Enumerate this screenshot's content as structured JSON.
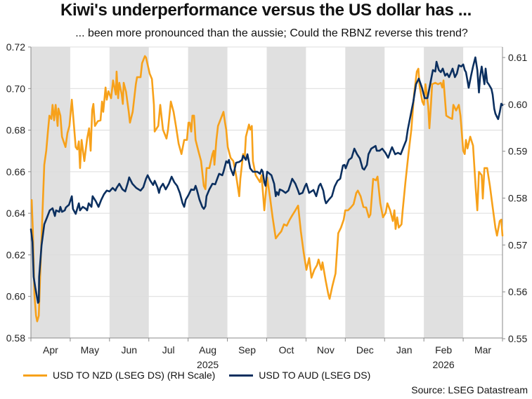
{
  "chart_data": {
    "type": "line",
    "title": "Kiwi's underperformance versus the US dollar has ...",
    "subtitle": "... been more pronounced than the aussie; Could the RBNZ reverse this trend?",
    "xlabel": "",
    "x_unit": "months since start of Apr 2025",
    "x_range": [
      0,
      12
    ],
    "x_ticks": [
      "Apr",
      "May",
      "Jun",
      "Jul",
      "Aug",
      "Sep",
      "Oct",
      "Nov",
      "Dec",
      "Jan",
      "Feb",
      "Mar"
    ],
    "x_year_labels": [
      {
        "label": "2025",
        "under": "Aug"
      },
      {
        "label": "2026",
        "under": "Feb"
      }
    ],
    "alternating_month_shading": true,
    "y_left": {
      "range": [
        0.58,
        0.72
      ],
      "ticks": [
        "0.58",
        "0.60",
        "0.62",
        "0.64",
        "0.66",
        "0.68",
        "0.70",
        "0.72"
      ]
    },
    "y_right": {
      "range": [
        0.55,
        0.61
      ],
      "ticks": [
        "0.55",
        "0.56",
        "0.57",
        "0.58",
        "0.59",
        "0.60",
        "0.61"
      ]
    },
    "grid": true,
    "legend_position": "bottom",
    "source": "Source: LSEG Datastream",
    "series": [
      {
        "name": "USD TO NZD (LSEG DS) (RH Scale)",
        "axis": "right",
        "color": "#f7a11a",
        "x": [
          0.02,
          0.05,
          0.09,
          0.13,
          0.16,
          0.2,
          0.23,
          0.29,
          0.34,
          0.39,
          0.43,
          0.47,
          0.52,
          0.55,
          0.59,
          0.63,
          0.68,
          0.7,
          0.75,
          0.79,
          0.88,
          0.93,
          0.98,
          1.04,
          1.09,
          1.14,
          1.18,
          1.22,
          1.25,
          1.29,
          1.36,
          1.43,
          1.48,
          1.52,
          1.56,
          1.59,
          1.63,
          1.7,
          1.77,
          1.81,
          1.84,
          1.9,
          1.93,
          1.97,
          2.04,
          2.09,
          2.16,
          2.18,
          2.22,
          2.25,
          2.31,
          2.34,
          2.36,
          2.42,
          2.49,
          2.52,
          2.59,
          2.67,
          2.7,
          2.79,
          2.83,
          2.9,
          2.93,
          3.02,
          3.08,
          3.13,
          3.15,
          3.24,
          3.29,
          3.36,
          3.45,
          3.49,
          3.56,
          3.63,
          3.69,
          3.76,
          3.83,
          3.9,
          3.97,
          4.01,
          4.04,
          4.08,
          4.11,
          4.15,
          4.19,
          4.26,
          4.33,
          4.4,
          4.44,
          4.47,
          4.54,
          4.62,
          4.65,
          4.67,
          4.72,
          4.76,
          4.83,
          4.9,
          4.94,
          4.97,
          5.01,
          5.08,
          5.15,
          5.22,
          5.3,
          5.33,
          5.4,
          5.44,
          5.47,
          5.55,
          5.58,
          5.62,
          5.65,
          5.72,
          5.83,
          5.87,
          5.94,
          6.01,
          6.08,
          6.15,
          6.23,
          6.3,
          6.37,
          6.44,
          6.51,
          6.58,
          6.65,
          6.73,
          6.8,
          6.87,
          6.94,
          7.01,
          7.08,
          7.14,
          7.21,
          7.28,
          7.32,
          7.39,
          7.42,
          7.5,
          7.57,
          7.6,
          7.67,
          7.75,
          7.82,
          7.89,
          7.96,
          8.0,
          8.07,
          8.14,
          8.21,
          8.28,
          8.32,
          8.39,
          8.46,
          8.53,
          8.6,
          8.64,
          8.71,
          8.78,
          8.82,
          8.89,
          8.96,
          9.03,
          9.07,
          9.14,
          9.21,
          9.25,
          9.28,
          9.32,
          9.36,
          9.43,
          9.46,
          9.53,
          9.61,
          9.68,
          9.75,
          9.82,
          9.86,
          9.89,
          9.96,
          10.0,
          10.04,
          10.11,
          10.14,
          10.18,
          10.21,
          10.29,
          10.36,
          10.43,
          10.47,
          10.5,
          10.57,
          10.64,
          10.72,
          10.75,
          10.82,
          10.89,
          10.93,
          11.0,
          11.04,
          11.07,
          11.11,
          11.18,
          11.25,
          11.32,
          11.36,
          11.4,
          11.47,
          11.5,
          11.54,
          11.61,
          11.68,
          11.75,
          11.82,
          11.86,
          11.93,
          11.97,
          12.0
        ],
        "values": [
          0.5796,
          0.5729,
          0.5594,
          0.5549,
          0.5537,
          0.5549,
          0.5624,
          0.5759,
          0.5871,
          0.5901,
          0.5939,
          0.5976,
          0.5969,
          0.5999,
          0.5966,
          0.5999,
          0.5954,
          0.5991,
          0.5976,
          0.5931,
          0.5909,
          0.5939,
          0.5954,
          0.601,
          0.5961,
          0.5909,
          0.5904,
          0.5921,
          0.5864,
          0.5924,
          0.5879,
          0.5927,
          0.5949,
          0.5901,
          0.5988,
          0.6001,
          0.5954,
          0.5964,
          0.5966,
          0.6006,
          0.5984,
          0.6036,
          0.601,
          0.6028,
          0.6013,
          0.6051,
          0.6021,
          0.607,
          0.6013,
          0.6046,
          0.6021,
          0.6001,
          0.6046,
          0.6027,
          0.5984,
          0.5961,
          0.5984,
          0.6043,
          0.6058,
          0.6058,
          0.6088,
          0.6103,
          0.61,
          0.6066,
          0.6054,
          0.5999,
          0.5942,
          0.5954,
          0.5999,
          0.5946,
          0.5927,
          0.5946,
          0.6006,
          0.5984,
          0.5954,
          0.5916,
          0.5894,
          0.5924,
          0.5924,
          0.5961,
          0.5961,
          0.5942,
          0.5976,
          0.5976,
          0.5924,
          0.5901,
          0.5879,
          0.5826,
          0.5819,
          0.5864,
          0.5864,
          0.5894,
          0.5901,
          0.5871,
          0.5924,
          0.5954,
          0.5969,
          0.5984,
          0.5961,
          0.5946,
          0.5909,
          0.5886,
          0.5879,
          0.5849,
          0.5804,
          0.5841,
          0.5894,
          0.5886,
          0.5931,
          0.5957,
          0.5946,
          0.5954,
          0.5879,
          0.5849,
          0.5834,
          0.5849,
          0.5774,
          0.5844,
          0.5804,
          0.5759,
          0.5714,
          0.5722,
          0.5729,
          0.5744,
          0.5741,
          0.5753,
          0.5763,
          0.5774,
          0.5784,
          0.5729,
          0.5684,
          0.5647,
          0.5672,
          0.563,
          0.5647,
          0.5657,
          0.5669,
          0.5647,
          0.5663,
          0.5624,
          0.5594,
          0.5585,
          0.5612,
          0.5639,
          0.5725,
          0.5737,
          0.5754,
          0.5774,
          0.5774,
          0.578,
          0.5787,
          0.5811,
          0.5816,
          0.5804,
          0.5781,
          0.578,
          0.5759,
          0.5765,
          0.5841,
          0.5838,
          0.5846,
          0.5789,
          0.5759,
          0.5769,
          0.5789,
          0.5774,
          0.5751,
          0.5774,
          0.5734,
          0.5759,
          0.5737,
          0.5744,
          0.5774,
          0.5834,
          0.5897,
          0.5946,
          0.6021,
          0.607,
          0.6076,
          0.604,
          0.6006,
          0.5999,
          0.6043,
          0.5996,
          0.5949,
          0.5999,
          0.6043,
          0.6046,
          0.6043,
          0.6046,
          0.6036,
          0.6051,
          0.5976,
          0.5972,
          0.5969,
          0.5999,
          0.5987,
          0.5999,
          0.5976,
          0.5901,
          0.5894,
          0.5924,
          0.5906,
          0.5931,
          0.5912,
          0.5819,
          0.5774,
          0.5856,
          0.5849,
          0.5799,
          0.5864,
          0.5864,
          0.5826,
          0.5781,
          0.5737,
          0.572,
          0.5751,
          0.5754,
          0.572
        ]
      },
      {
        "name": "USD TO AUD (LSEG DS)",
        "axis": "left",
        "color": "#0b2f5f",
        "x": [
          0.0,
          0.04,
          0.07,
          0.11,
          0.18,
          0.2,
          0.21,
          0.27,
          0.34,
          0.41,
          0.48,
          0.55,
          0.61,
          0.64,
          0.72,
          0.75,
          0.79,
          0.86,
          0.89,
          0.97,
          1.04,
          1.07,
          1.14,
          1.22,
          1.25,
          1.32,
          1.4,
          1.43,
          1.47,
          1.54,
          1.57,
          1.65,
          1.72,
          1.79,
          1.86,
          1.93,
          2.0,
          2.08,
          2.15,
          2.18,
          2.25,
          2.33,
          2.4,
          2.47,
          2.5,
          2.58,
          2.68,
          2.79,
          2.86,
          2.93,
          2.97,
          3.04,
          3.11,
          3.15,
          3.22,
          3.26,
          3.29,
          3.36,
          3.43,
          3.51,
          3.58,
          3.65,
          3.72,
          3.79,
          3.86,
          3.9,
          3.94,
          4.01,
          4.08,
          4.15,
          4.19,
          4.22,
          4.29,
          4.36,
          4.4,
          4.44,
          4.47,
          4.54,
          4.62,
          4.69,
          4.76,
          4.79,
          4.87,
          4.9,
          4.97,
          5.01,
          5.04,
          5.08,
          5.15,
          5.22,
          5.3,
          5.37,
          5.4,
          5.47,
          5.51,
          5.58,
          5.65,
          5.76,
          5.83,
          5.87,
          5.9,
          5.94,
          5.97,
          6.01,
          6.12,
          6.19,
          6.23,
          6.26,
          6.3,
          6.33,
          6.4,
          6.48,
          6.55,
          6.62,
          6.65,
          6.73,
          6.8,
          6.83,
          6.91,
          6.98,
          7.01,
          7.08,
          7.19,
          7.26,
          7.33,
          7.37,
          7.44,
          7.48,
          7.51,
          7.58,
          7.66,
          7.73,
          7.8,
          7.87,
          7.94,
          7.98,
          8.01,
          8.09,
          8.16,
          8.23,
          8.3,
          8.37,
          8.44,
          8.48,
          8.55,
          8.59,
          8.66,
          8.77,
          8.8,
          8.87,
          8.94,
          9.02,
          9.09,
          9.16,
          9.19,
          9.27,
          9.34,
          9.41,
          9.48,
          9.55,
          9.59,
          9.66,
          9.73,
          9.8,
          9.87,
          9.95,
          10.02,
          10.09,
          10.16,
          10.23,
          10.29,
          10.32,
          10.38,
          10.43,
          10.48,
          10.54,
          10.59,
          10.64,
          10.68,
          10.73,
          10.79,
          10.84,
          10.89,
          10.95,
          11.0,
          11.04,
          11.07,
          11.11,
          11.14,
          11.2,
          11.25,
          11.31,
          11.36,
          11.4,
          11.43,
          11.47,
          11.5,
          11.54,
          11.57,
          11.61,
          11.65,
          11.72,
          11.75,
          11.79,
          11.82,
          11.86,
          11.89,
          11.93,
          11.97,
          12.0
        ],
        "values": [
          0.6323,
          0.6262,
          0.6094,
          0.6043,
          0.5969,
          0.5975,
          0.6094,
          0.6245,
          0.6347,
          0.638,
          0.6414,
          0.6424,
          0.6387,
          0.6414,
          0.6407,
          0.6431,
          0.6407,
          0.6414,
          0.6428,
          0.6441,
          0.6482,
          0.6421,
          0.6397,
          0.6448,
          0.6414,
          0.6431,
          0.6421,
          0.6414,
          0.6448,
          0.6431,
          0.6482,
          0.6458,
          0.6431,
          0.6465,
          0.6492,
          0.6509,
          0.6505,
          0.6522,
          0.6509,
          0.6522,
          0.6542,
          0.6515,
          0.6505,
          0.6549,
          0.6573,
          0.6542,
          0.6522,
          0.6509,
          0.6525,
          0.6566,
          0.6583,
          0.6556,
          0.6536,
          0.6556,
          0.6525,
          0.6498,
          0.6522,
          0.6542,
          0.6515,
          0.6542,
          0.6576,
          0.6549,
          0.6532,
          0.6498,
          0.6448,
          0.6431,
          0.6465,
          0.6488,
          0.6515,
          0.6512,
          0.6532,
          0.6515,
          0.6465,
          0.6431,
          0.6421,
          0.6434,
          0.6482,
          0.6515,
          0.6542,
          0.6539,
          0.6576,
          0.659,
          0.6583,
          0.66,
          0.665,
          0.6643,
          0.6657,
          0.6616,
          0.6583,
          0.6643,
          0.6647,
          0.6657,
          0.6677,
          0.6657,
          0.6684,
          0.6616,
          0.66,
          0.66,
          0.659,
          0.661,
          0.66,
          0.6549,
          0.6532,
          0.66,
          0.6583,
          0.6542,
          0.6482,
          0.6502,
          0.6488,
          0.6515,
          0.6509,
          0.6498,
          0.6509,
          0.6549,
          0.6566,
          0.6542,
          0.6509,
          0.6492,
          0.6498,
          0.6532,
          0.6542,
          0.6498,
          0.6512,
          0.6482,
          0.6532,
          0.6542,
          0.6509,
          0.6465,
          0.6448,
          0.6465,
          0.6482,
          0.6529,
          0.6556,
          0.6566,
          0.663,
          0.6633,
          0.6616,
          0.6657,
          0.6667,
          0.6711,
          0.6684,
          0.6664,
          0.6616,
          0.661,
          0.6633,
          0.6684,
          0.6711,
          0.6724,
          0.6701,
          0.6701,
          0.6711,
          0.6691,
          0.6667,
          0.6704,
          0.6718,
          0.6684,
          0.6691,
          0.6684,
          0.6718,
          0.6751,
          0.6802,
          0.687,
          0.6937,
          0.7021,
          0.7048,
          0.7004,
          0.6954,
          0.6954,
          0.7021,
          0.7089,
          0.7082,
          0.7129,
          0.7089,
          0.7079,
          0.7096,
          0.7062,
          0.7072,
          0.7055,
          0.7072,
          0.7096,
          0.7055,
          0.7072,
          0.7112,
          0.7106,
          0.7116,
          0.7089,
          0.7079,
          0.7038,
          0.7004,
          0.7062,
          0.7106,
          0.715,
          0.7089,
          0.6981,
          0.7055,
          0.7106,
          0.7072,
          0.7021,
          0.7096,
          0.7031,
          0.7021,
          0.6998,
          0.6971,
          0.6903,
          0.688,
          0.6863,
          0.6853,
          0.6886,
          0.6927,
          0.692
        ]
      }
    ]
  },
  "legend": {
    "items": [
      {
        "label": "USD TO NZD (LSEG DS) (RH Scale)",
        "color": "#f7a11a"
      },
      {
        "label": "USD TO AUD (LSEG DS)",
        "color": "#0b2f5f"
      }
    ]
  },
  "colors": {
    "shade": "#e0e0e0",
    "grid": "#dcdcdc",
    "axis": "#8a8a8a"
  }
}
